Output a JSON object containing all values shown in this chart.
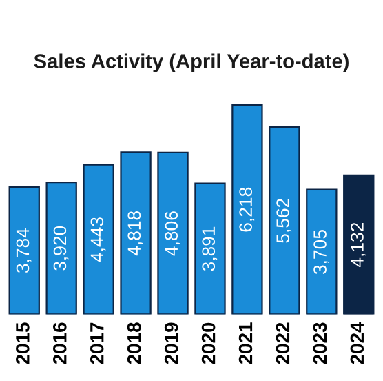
{
  "chart_data": {
    "type": "bar",
    "title": "Sales Activity (April Year-to-date)",
    "categories": [
      "2015",
      "2016",
      "2017",
      "2018",
      "2019",
      "2020",
      "2021",
      "2022",
      "2023",
      "2024"
    ],
    "values": [
      3784,
      3920,
      4443,
      4818,
      4806,
      3891,
      6218,
      5562,
      3705,
      4132
    ],
    "colors": [
      "#1a8cd8",
      "#1a8cd8",
      "#1a8cd8",
      "#1a8cd8",
      "#1a8cd8",
      "#1a8cd8",
      "#1a8cd8",
      "#1a8cd8",
      "#1a8cd8",
      "#0c2546"
    ],
    "value_labels": [
      "3,784",
      "3,920",
      "4,443",
      "4,818",
      "4,806",
      "3,891",
      "6,218",
      "5,562",
      "3,705",
      "4,132"
    ],
    "grid": false,
    "legend": false
  }
}
